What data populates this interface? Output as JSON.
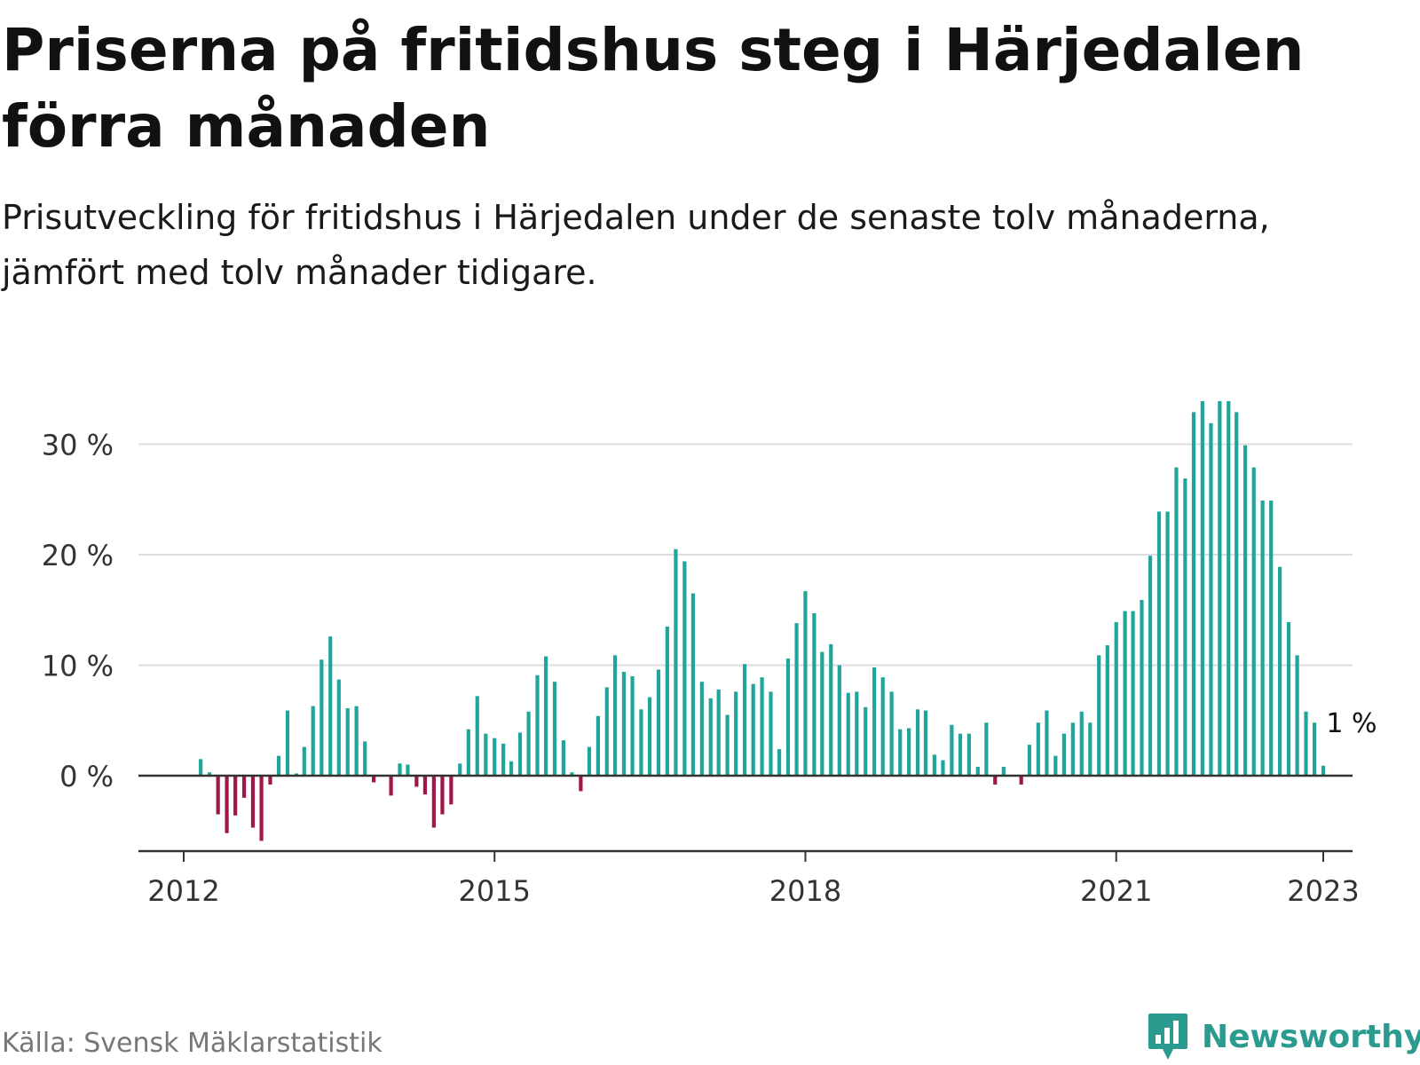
{
  "title": "Priserna på fritidshus steg i Härjedalen förra månaden",
  "subtitle": "Prisutveckling för fritidshus i Härjedalen under de senaste tolv månaderna, jämfört med tolv månader tidigare.",
  "source": "Källa: Svensk Mäklarstatistik",
  "brand": {
    "name": "Newsworthy",
    "icon": "newsworthy-logo-icon"
  },
  "colors": {
    "positive": "#1fa59a",
    "negative": "#a0164a",
    "grid": "#dddddd",
    "axis": "#333333",
    "text": "#333333",
    "brand": "#2b9a8f"
  },
  "chart_data": {
    "type": "bar",
    "title": "Priserna på fritidshus steg i Härjedalen förra månaden",
    "subtitle": "Prisutveckling för fritidshus i Härjedalen under de senaste tolv månaderna, jämfört med tolv månader tidigare.",
    "xlabel": "",
    "ylabel": "",
    "x_ticks": [
      "2012",
      "2015",
      "2018",
      "2021",
      "2023"
    ],
    "y_ticks": [
      "0 %",
      "10 %",
      "20 %",
      "30 %"
    ],
    "ylim": [
      -7,
      34
    ],
    "grid": true,
    "value_unit": "%",
    "annotation": {
      "label": "1 %",
      "date": "2023-01"
    },
    "dates": [
      "2012-01",
      "2012-02",
      "2012-03",
      "2012-04",
      "2012-05",
      "2012-06",
      "2012-07",
      "2012-08",
      "2012-09",
      "2012-10",
      "2012-11",
      "2012-12",
      "2013-01",
      "2013-02",
      "2013-03",
      "2013-04",
      "2013-05",
      "2013-06",
      "2013-07",
      "2013-08",
      "2013-09",
      "2013-10",
      "2013-11",
      "2013-12",
      "2014-01",
      "2014-02",
      "2014-03",
      "2014-04",
      "2014-05",
      "2014-06",
      "2014-07",
      "2014-08",
      "2014-09",
      "2014-10",
      "2014-11",
      "2014-12",
      "2015-01",
      "2015-02",
      "2015-03",
      "2015-04",
      "2015-05",
      "2015-06",
      "2015-07",
      "2015-08",
      "2015-09",
      "2015-10",
      "2015-11",
      "2015-12",
      "2016-01",
      "2016-02",
      "2016-03",
      "2016-04",
      "2016-05",
      "2016-06",
      "2016-07",
      "2016-08",
      "2016-09",
      "2016-10",
      "2016-11",
      "2016-12",
      "2017-01",
      "2017-02",
      "2017-03",
      "2017-04",
      "2017-05",
      "2017-06",
      "2017-07",
      "2017-08",
      "2017-09",
      "2017-10",
      "2017-11",
      "2017-12",
      "2018-01",
      "2018-02",
      "2018-03",
      "2018-04",
      "2018-05",
      "2018-06",
      "2018-07",
      "2018-08",
      "2018-09",
      "2018-10",
      "2018-11",
      "2018-12",
      "2019-01",
      "2019-02",
      "2019-03",
      "2019-04",
      "2019-05",
      "2019-06",
      "2019-07",
      "2019-08",
      "2019-09",
      "2019-10",
      "2019-11",
      "2019-12",
      "2020-01",
      "2020-02",
      "2020-03",
      "2020-04",
      "2020-05",
      "2020-06",
      "2020-07",
      "2020-08",
      "2020-09",
      "2020-10",
      "2020-11",
      "2020-12",
      "2021-01",
      "2021-02",
      "2021-03",
      "2021-04",
      "2021-05",
      "2021-06",
      "2021-07",
      "2021-08",
      "2021-09",
      "2021-10",
      "2021-11",
      "2021-12",
      "2022-01",
      "2022-02",
      "2022-03",
      "2022-04",
      "2022-05",
      "2022-06",
      "2022-07",
      "2022-08",
      "2022-09",
      "2022-10",
      "2022-11",
      "2022-12",
      "2023-01"
    ],
    "values": [
      null,
      null,
      1.5,
      0.3,
      -3.5,
      -5.2,
      -3.6,
      -2,
      -4.7,
      -5.9,
      -0.8,
      1.8,
      5.9,
      0.2,
      2.6,
      6.3,
      10.5,
      12.6,
      8.7,
      6.1,
      6.3,
      3.1,
      -0.6,
      null,
      -1.8,
      1.1,
      1.0,
      -1,
      -1.7,
      -4.7,
      -3.5,
      -2.6,
      1.1,
      4.2,
      7.2,
      3.8,
      3.4,
      2.9,
      1.3,
      3.9,
      5.8,
      9.1,
      10.8,
      8.5,
      3.2,
      0.3,
      -1.4,
      2.6,
      5.4,
      8.0,
      10.9,
      9.4,
      9.0,
      6.0,
      7.1,
      9.6,
      13.5,
      20.5,
      19.4,
      16.5,
      8.5,
      7.0,
      7.8,
      5.5,
      7.6,
      10.1,
      8.3,
      8.9,
      7.6,
      2.4,
      10.6,
      13.8,
      16.7,
      14.7,
      11.2,
      11.9,
      10.0,
      7.5,
      7.6,
      6.2,
      9.8,
      8.9,
      7.6,
      4.2,
      4.3,
      6.0,
      5.9,
      1.9,
      1.4,
      4.6,
      3.8,
      3.8,
      0.8,
      4.8,
      -0.8,
      0.8,
      null,
      -0.8,
      2.8,
      4.8,
      5.9,
      1.8,
      3.8,
      4.8,
      5.8,
      4.8,
      10.9,
      11.8,
      13.9,
      14.9,
      14.9,
      15.9,
      19.9,
      23.9,
      23.9,
      27.9,
      26.9,
      32.9,
      33.9,
      31.9,
      33.9,
      33.9,
      32.9,
      29.9,
      27.9,
      24.9,
      24.9,
      18.9,
      13.9,
      10.9,
      5.8,
      4.8,
      0.9
    ]
  }
}
